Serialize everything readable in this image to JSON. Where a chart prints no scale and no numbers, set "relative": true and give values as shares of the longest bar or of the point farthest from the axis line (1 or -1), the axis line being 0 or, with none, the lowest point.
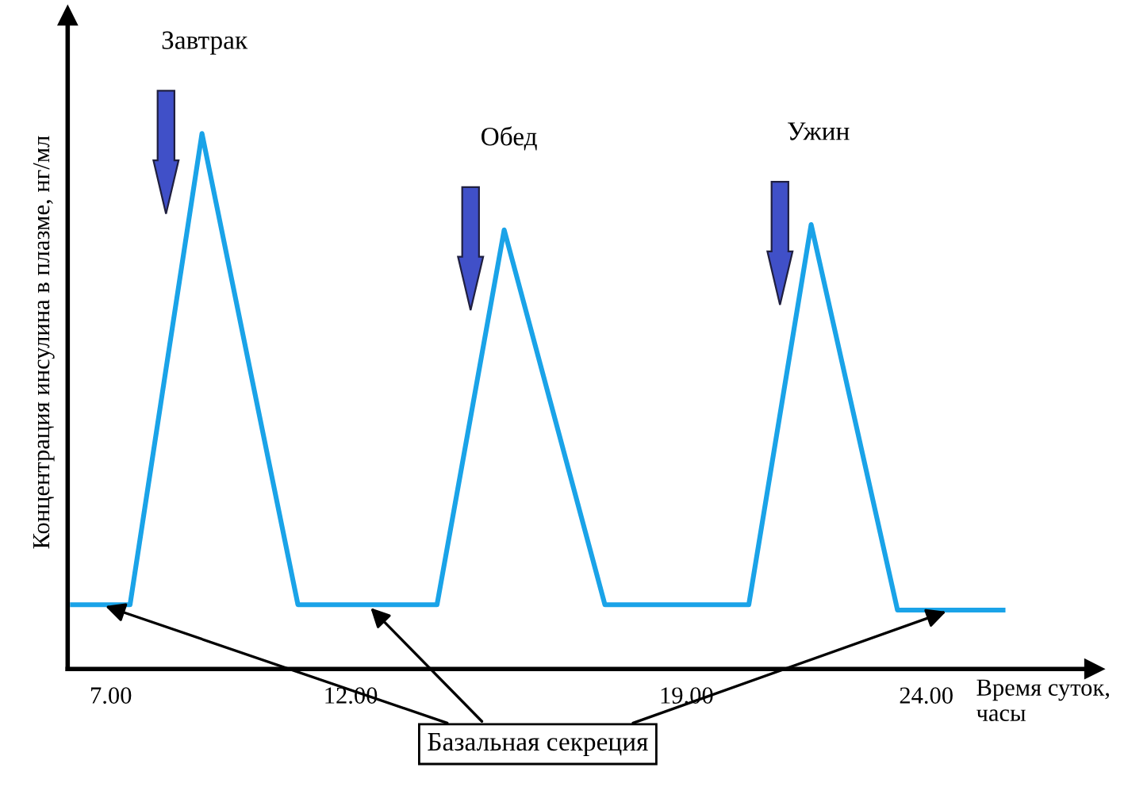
{
  "chart_data": {
    "type": "line",
    "relative": true,
    "xlabel": "Время суток,\nчасы",
    "ylabel": "Концентрация инсулина в плазме, нг/мл",
    "xlim": [
      6.1,
      27.5
    ],
    "xticks": [
      {
        "value": 7,
        "label": "7.00"
      },
      {
        "value": 12,
        "label": "12.00"
      },
      {
        "value": 19,
        "label": "19.00"
      },
      {
        "value": 24,
        "label": "24.00"
      }
    ],
    "series": [
      {
        "color": "#1aa3e8",
        "x": [
          6.2,
          7.4,
          8.9,
          10.9,
          13.8,
          15.2,
          17.3,
          20.3,
          21.6,
          23.4,
          25.6
        ],
        "values": [
          0.12,
          0.12,
          1,
          0.12,
          0.12,
          0.82,
          0.12,
          0.12,
          0.83,
          0.11,
          0.11
        ]
      }
    ],
    "annotations": [
      "Завтрак",
      "Обед",
      "Ужин",
      "Базальная секреция"
    ],
    "grid": false,
    "legend": false,
    "marker": "none",
    "line_style": "solid"
  }
}
